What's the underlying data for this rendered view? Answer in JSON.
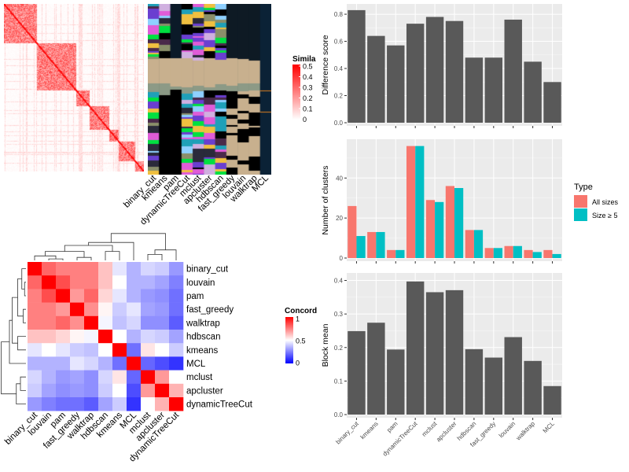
{
  "methods_bar_order": [
    "binary_cut",
    "kmeans",
    "pam",
    "dynamicTreeCut",
    "mclust",
    "apcluster",
    "hdbscan",
    "fast_greedy",
    "louvain",
    "walktrap",
    "MCL"
  ],
  "similarity_heatmap": {
    "legend_title": "Simila",
    "legend_ticks": [
      "0.5",
      "0.4",
      "0.3",
      "0.2",
      "0.1",
      "0"
    ],
    "colors": {
      "low": "#ffffff",
      "high": "#ff0000"
    },
    "membership_columns": [
      "binary_cut",
      "kmeans",
      "pam",
      "dynamicTreeCut",
      "mclust",
      "apcluster",
      "hdbscan",
      "fast_greedy",
      "louvain",
      "walktrap",
      "MCL"
    ]
  },
  "concordance_heatmap": {
    "legend_title": "Concord",
    "legend_ticks": [
      "1",
      "0.5",
      "0"
    ],
    "colors": {
      "low": "#0000ff",
      "mid": "#ffffff",
      "high": "#ff0000"
    },
    "labels": [
      "binary_cut",
      "louvain",
      "pam",
      "fast_greedy",
      "walktrap",
      "hdbscan",
      "kmeans",
      "MCL",
      "mclust",
      "apcluster",
      "dynamicTreeCut"
    ]
  },
  "chart_data": [
    {
      "type": "bar",
      "title": "",
      "xlabel": "",
      "ylabel": "Difference score",
      "categories": [
        "binary_cut",
        "kmeans",
        "pam",
        "dynamicTreeCut",
        "mclust",
        "apcluster",
        "hdbscan",
        "fast_greedy",
        "louvain",
        "walktrap",
        "MCL"
      ],
      "values": [
        0.83,
        0.64,
        0.57,
        0.73,
        0.78,
        0.75,
        0.48,
        0.48,
        0.76,
        0.45,
        0.3
      ],
      "yticks": [
        "0.0",
        "0.2",
        "0.4",
        "0.6",
        "0.8"
      ],
      "ylim": [
        0,
        0.87
      ],
      "grid": true,
      "color": "#595959"
    },
    {
      "type": "bar",
      "title": "",
      "xlabel": "",
      "ylabel": "Number of clusters",
      "categories": [
        "binary_cut",
        "kmeans",
        "pam",
        "dynamicTreeCut",
        "mclust",
        "apcluster",
        "hdbscan",
        "fast_greedy",
        "louvain",
        "walktrap",
        "MCL"
      ],
      "series": [
        {
          "name": "All sizes",
          "color": "#F8766D",
          "values": [
            26,
            13,
            4,
            56,
            29,
            36,
            14,
            5,
            6,
            4,
            4
          ]
        },
        {
          "name": "Size ≥ 5",
          "color": "#00BFC4",
          "values": [
            11,
            13,
            4,
            56,
            28,
            35,
            14,
            5,
            6,
            3,
            2
          ]
        }
      ],
      "yticks": [
        "0",
        "20",
        "40"
      ],
      "ylim": [
        0,
        59
      ],
      "grid": true,
      "legend": {
        "title": "Type",
        "position": "right"
      }
    },
    {
      "type": "bar",
      "title": "",
      "xlabel": "",
      "ylabel": "Block mean",
      "categories": [
        "binary_cut",
        "kmeans",
        "pam",
        "dynamicTreeCut",
        "mclust",
        "apcluster",
        "hdbscan",
        "fast_greedy",
        "louvain",
        "walktrap",
        "MCL"
      ],
      "values": [
        0.249,
        0.274,
        0.194,
        0.397,
        0.365,
        0.371,
        0.195,
        0.17,
        0.231,
        0.16,
        0.085
      ],
      "yticks": [
        "0.0",
        "0.1",
        "0.2",
        "0.3",
        "0.4"
      ],
      "ylim": [
        0,
        0.42
      ],
      "grid": true,
      "color": "#595959"
    },
    {
      "type": "heatmap",
      "title": "",
      "labels": [
        "binary_cut",
        "louvain",
        "pam",
        "fast_greedy",
        "walktrap",
        "hdbscan",
        "kmeans",
        "MCL",
        "mclust",
        "apcluster",
        "dynamicTreeCut"
      ],
      "values": [
        [
          1,
          0.8,
          0.75,
          0.75,
          0.75,
          0.62,
          0.45,
          0.35,
          0.42,
          0.4,
          0.3
        ],
        [
          0.8,
          1,
          0.85,
          0.75,
          0.75,
          0.62,
          0.5,
          0.35,
          0.35,
          0.32,
          0.25
        ],
        [
          0.75,
          0.85,
          1,
          0.7,
          0.8,
          0.58,
          0.45,
          0.35,
          0.3,
          0.28,
          0.22
        ],
        [
          0.75,
          0.75,
          0.7,
          1,
          0.72,
          0.52,
          0.4,
          0.45,
          0.32,
          0.3,
          0.22
        ],
        [
          0.75,
          0.75,
          0.8,
          0.72,
          1,
          0.48,
          0.38,
          0.42,
          0.28,
          0.28,
          0.18
        ],
        [
          0.62,
          0.62,
          0.58,
          0.52,
          0.48,
          1,
          0.5,
          0.35,
          0.42,
          0.4,
          0.32
        ],
        [
          0.45,
          0.5,
          0.45,
          0.4,
          0.38,
          0.5,
          1,
          0.22,
          0.55,
          0.5,
          0.4
        ],
        [
          0.35,
          0.35,
          0.35,
          0.45,
          0.42,
          0.35,
          0.22,
          1,
          0.2,
          0.15,
          0.1
        ],
        [
          0.42,
          0.35,
          0.3,
          0.32,
          0.28,
          0.42,
          0.55,
          0.2,
          1,
          0.7,
          0.5
        ],
        [
          0.4,
          0.32,
          0.28,
          0.3,
          0.28,
          0.4,
          0.5,
          0.15,
          0.7,
          1,
          0.65
        ],
        [
          0.3,
          0.25,
          0.22,
          0.22,
          0.18,
          0.32,
          0.4,
          0.1,
          0.5,
          0.65,
          1
        ]
      ],
      "legend_title": "Concord",
      "range": [
        0,
        1
      ]
    }
  ]
}
